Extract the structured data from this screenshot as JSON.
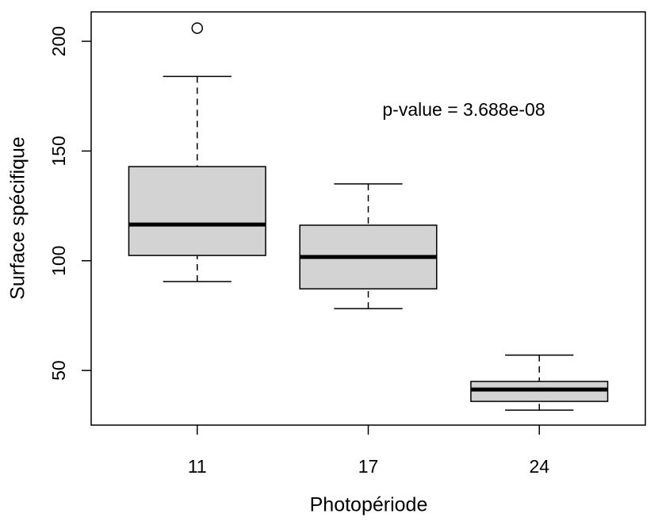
{
  "chart_data": {
    "type": "boxplot",
    "xlabel": "Photopériode",
    "ylabel": "Surface spécifique",
    "annotation": "p-value = 3.688e-08",
    "categories": [
      "11",
      "17",
      "24"
    ],
    "boxes": [
      {
        "min": 90.5,
        "q1": 102.4,
        "median": 116.5,
        "q3": 142.9,
        "max": 184,
        "outliers": [
          206
        ]
      },
      {
        "min": 78.2,
        "q1": 87.2,
        "median": 101.7,
        "q3": 116.2,
        "max": 135
      },
      {
        "min": 31.9,
        "q1": 35.9,
        "median": 41.3,
        "q3": 45,
        "max": 57
      }
    ],
    "color": "#d3d3d3",
    "ylim": [
      25.1,
      213.4
    ],
    "yticks": [
      50,
      100,
      150,
      200
    ]
  }
}
